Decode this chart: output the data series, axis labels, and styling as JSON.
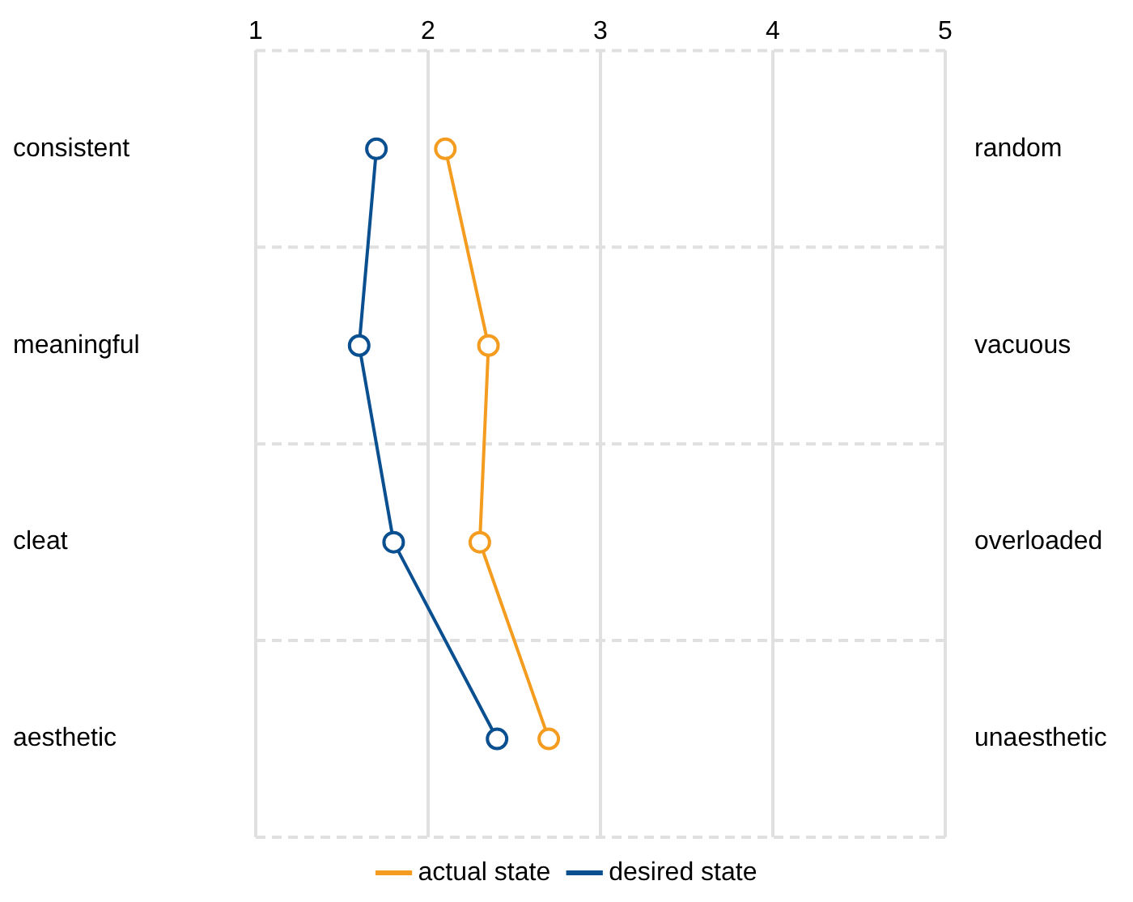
{
  "chart_data": {
    "type": "line",
    "orientation": "horizontal",
    "categories": [
      "consistent",
      "meaningful",
      "cleat",
      "aesthetic"
    ],
    "y2_categories": [
      "random",
      "vacuous",
      "overloaded",
      "unaesthetic"
    ],
    "series": [
      {
        "name": "actual state",
        "color": "#f39c1f",
        "values": [
          2.1,
          2.35,
          2.3,
          2.7
        ]
      },
      {
        "name": "desired state",
        "color": "#0a4f8f",
        "values": [
          1.7,
          1.6,
          1.8,
          2.4
        ]
      }
    ],
    "xlim": [
      1,
      5
    ],
    "xticks": [
      1,
      2,
      3,
      4,
      5
    ],
    "grid": true,
    "legend": "bottom",
    "marker": "circle",
    "line_style": "solid"
  }
}
